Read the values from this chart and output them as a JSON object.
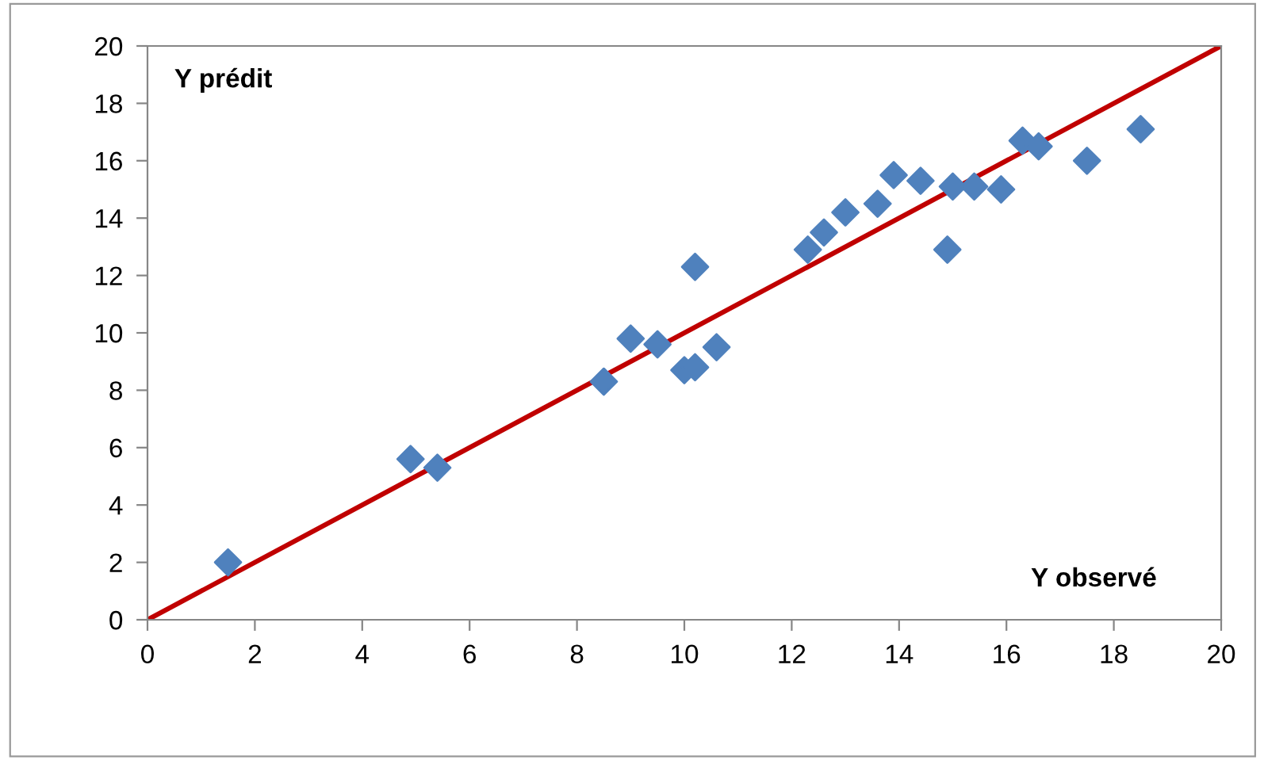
{
  "chart_data": {
    "type": "scatter",
    "xlabel": "Y observé",
    "ylabel": "Y prédit",
    "xlim": [
      0,
      20
    ],
    "ylim": [
      0,
      20
    ],
    "xticks": [
      0,
      2,
      4,
      6,
      8,
      10,
      12,
      14,
      16,
      18,
      20
    ],
    "yticks": [
      0,
      2,
      4,
      6,
      8,
      10,
      12,
      14,
      16,
      18,
      20
    ],
    "grid": false,
    "legend": false,
    "marker": "diamond",
    "series": [
      {
        "color": "#4f81bd",
        "x": [
          1.5,
          4.9,
          5.4,
          8.5,
          9.0,
          9.5,
          10.0,
          10.2,
          10.2,
          10.6,
          12.3,
          12.6,
          13.0,
          13.6,
          13.9,
          14.4,
          14.9,
          15.0,
          15.4,
          15.9,
          16.3,
          16.6,
          17.5,
          18.5
        ],
        "values": [
          2.0,
          5.6,
          5.3,
          8.3,
          9.8,
          9.6,
          8.7,
          8.8,
          12.3,
          9.5,
          12.9,
          13.5,
          14.2,
          14.5,
          15.5,
          15.3,
          12.9,
          15.1,
          15.1,
          15.0,
          16.7,
          16.5,
          16.0,
          17.1
        ]
      },
      {
        "type": "line",
        "color": "#c00000",
        "x": [
          0,
          20
        ],
        "values": [
          0,
          20
        ],
        "marker": "none",
        "line_style": "solid"
      }
    ]
  }
}
